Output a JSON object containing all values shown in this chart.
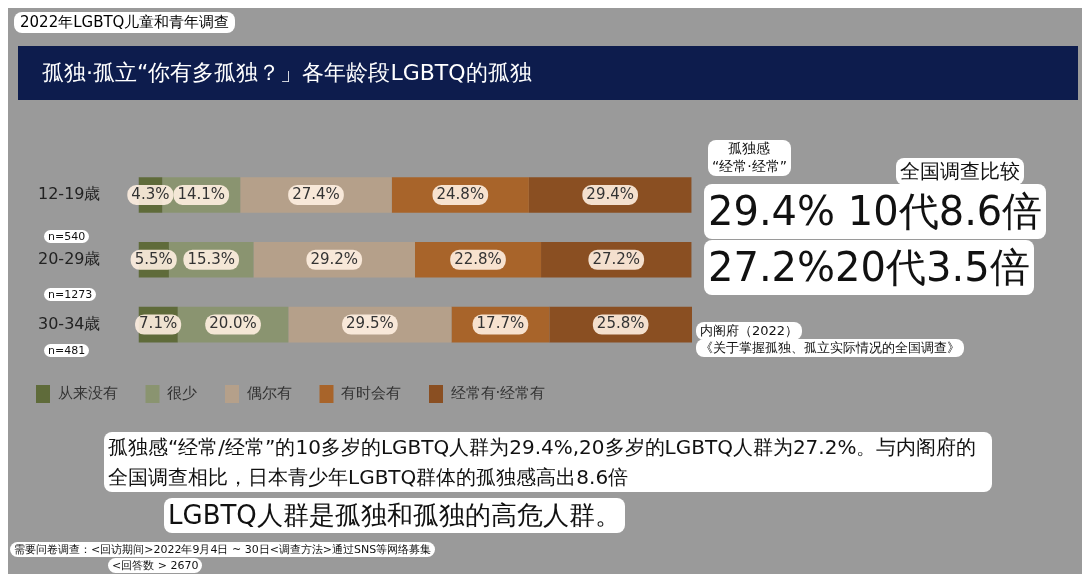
{
  "chart_data": {
    "type": "bar",
    "orientation": "horizontal",
    "stacked": true,
    "subtitle": "2022年LGBTQ儿童和青年调查",
    "title": "孤独·孤立“你有多孤独？」各年龄段LGBTQ的孤独",
    "categories": [
      "12-19歳",
      "20-29歳",
      "30-34歳"
    ],
    "series": [
      {
        "name": "从来没有",
        "color": "#5f6b3a",
        "values": [
          4.3,
          5.5,
          7.1
        ],
        "value_labels": [
          "4.3%",
          "5.5%",
          "7.1%"
        ]
      },
      {
        "name": "很少",
        "color": "#8a9470",
        "values": [
          14.1,
          15.3,
          20.0
        ],
        "value_labels": [
          "14.1%",
          "15.3%",
          "20.0%"
        ]
      },
      {
        "name": "偶尔有",
        "color": "#b5a08a",
        "values": [
          27.4,
          29.2,
          29.5
        ],
        "value_labels": [
          "27.4%",
          "29.2%",
          "29.5%"
        ]
      },
      {
        "name": "有时会有",
        "color": "#a8642a",
        "values": [
          24.8,
          22.8,
          17.7
        ],
        "value_labels": [
          "24.8%",
          "22.8%",
          "17.7%"
        ]
      },
      {
        "name": "经常有·经常有",
        "color": "#8a4f22",
        "values": [
          29.4,
          27.2,
          25.8
        ],
        "value_labels": [
          "29.4%",
          "27.2%",
          "25.8%"
        ]
      }
    ],
    "tick_labels": "y",
    "legend": "bottom",
    "annotations": [
      "孤独感\n“经常·经常”",
      "全国调查比较",
      "29.4% 10代8.6倍",
      "27.2%20代3.5倍",
      "内阁府（2022）",
      "《关于掌握孤独、孤立实际情况的全国调查》",
      "孤独感“经常/经常”的10多岁的LGBTQ人群为29.4%,20多岁的LGBTQ人群为27.2%。与内阁府的全国调查相比，日本青少年LGBTQ群体的孤独感高出8.6倍",
      "LGBTQ人群是孤独和孤独的高危人群。",
      "需要问卷调查：<回访期间>2022年9月4日 ~ 30日<调查方法>通过SNS等网络募集",
      "<回答数 > 2670",
      "n=540",
      "n=1273",
      "n=481"
    ]
  }
}
